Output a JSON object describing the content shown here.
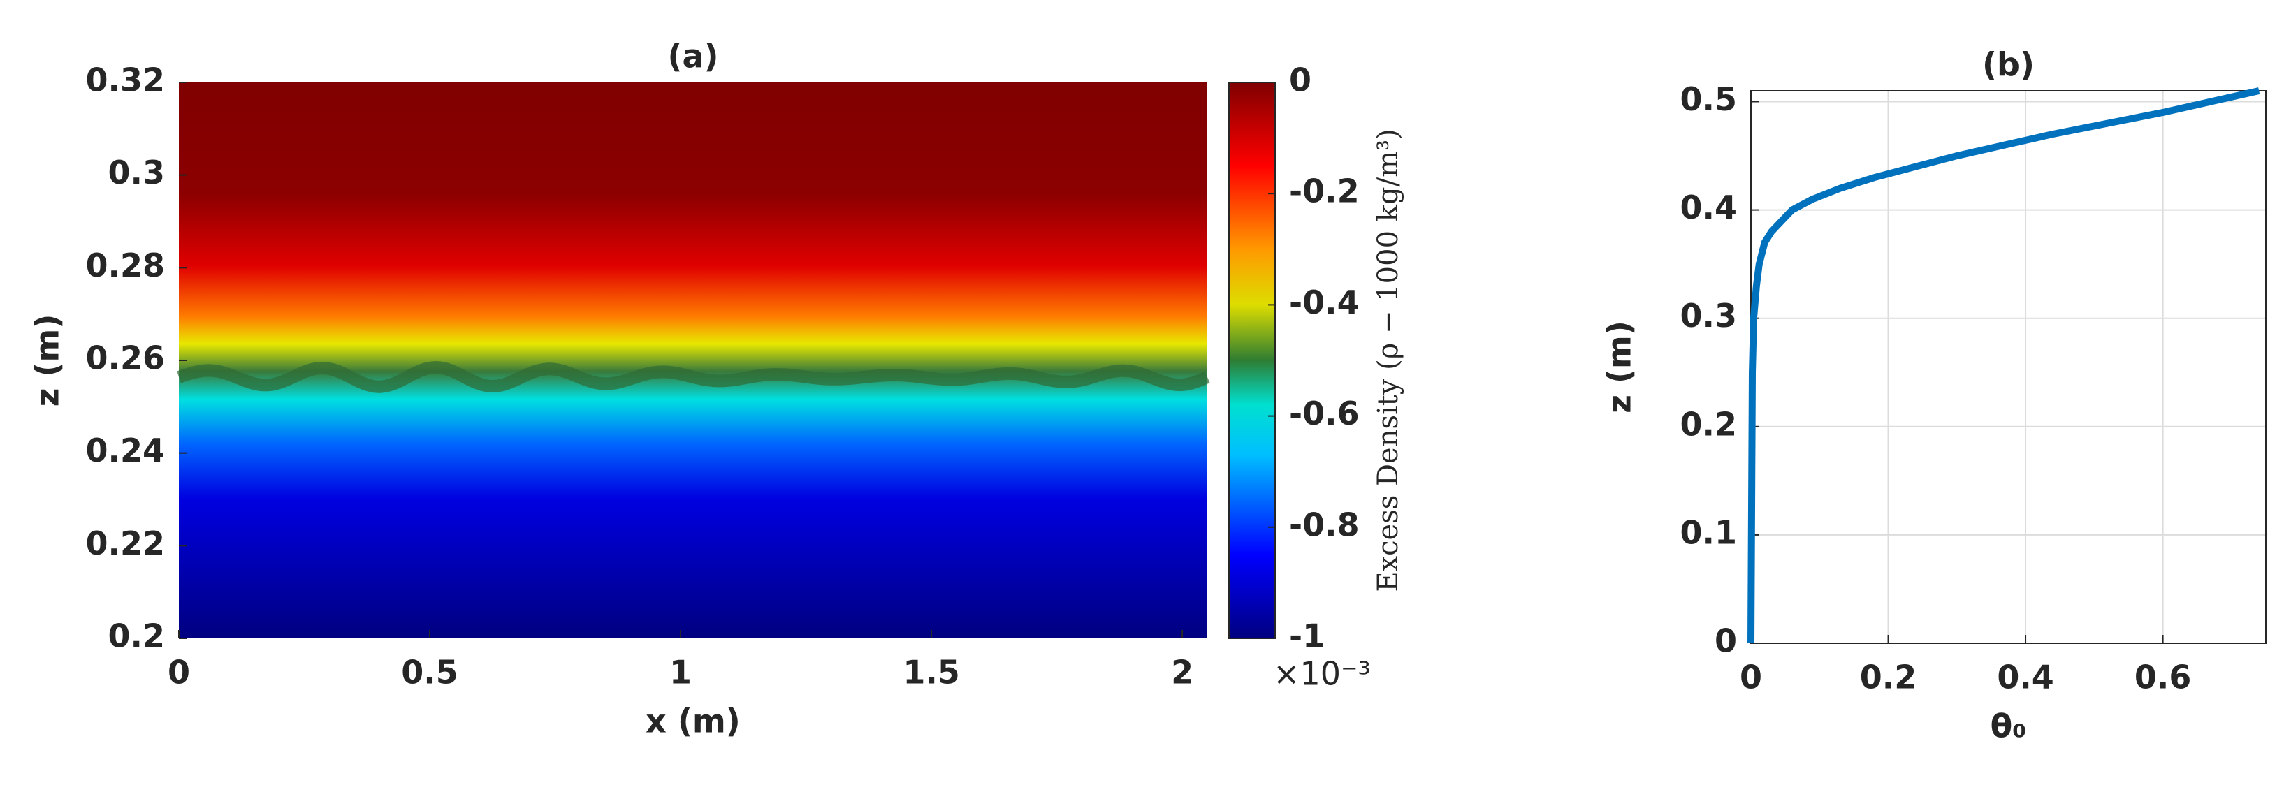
{
  "chart_data": [
    {
      "type": "heatmap",
      "title": "(a)",
      "xlabel": "x (m)",
      "ylabel": "z (m)",
      "xlim": [
        0,
        2.05
      ],
      "xticks": [
        0,
        0.5,
        1,
        1.5,
        2
      ],
      "ylim": [
        0.2,
        0.32
      ],
      "yticks": [
        0.2,
        0.22,
        0.24,
        0.26,
        0.28,
        0.3,
        0.32
      ],
      "colorbar": {
        "label": "Excess Density (ρ − 1000 kg/m³)",
        "multiplier": "×10⁻³",
        "lim": [
          -1,
          0
        ],
        "ticks": [
          -1,
          -0.8,
          -0.6,
          -0.4,
          -0.2,
          0
        ]
      }
    },
    {
      "type": "line",
      "title": "(b)",
      "xlabel": "θ₀",
      "ylabel": "z (m)",
      "xlim": [
        0,
        0.75
      ],
      "xticks": [
        0,
        0.2,
        0.4,
        0.6
      ],
      "ylim": [
        0,
        0.51
      ],
      "yticks": [
        0,
        0.1,
        0.2,
        0.3,
        0.4,
        0.5
      ],
      "grid": true,
      "x": [
        0,
        0.002,
        0.004,
        0.008,
        0.012,
        0.02,
        0.03,
        0.045,
        0.06,
        0.09,
        0.13,
        0.18,
        0.24,
        0.3,
        0.37,
        0.44,
        0.52,
        0.6,
        0.67,
        0.74
      ],
      "series": [
        {
          "name": "θ₀",
          "color": "#0072bd",
          "values": [
            0,
            0.25,
            0.3,
            0.33,
            0.35,
            0.37,
            0.38,
            0.39,
            0.4,
            0.41,
            0.42,
            0.43,
            0.44,
            0.45,
            0.46,
            0.47,
            0.48,
            0.49,
            0.5,
            0.51
          ]
        }
      ]
    }
  ]
}
